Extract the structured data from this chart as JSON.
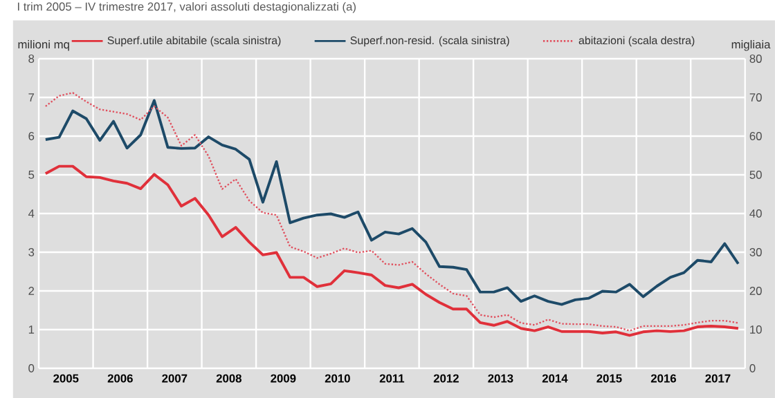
{
  "chart_data": {
    "type": "line",
    "subtitle": "I trim 2005 – IV trimestre 2017, valori assoluti destagionalizzati (a)",
    "ylabel": "milioni mq",
    "y2label": "migliaia",
    "x": [
      2005.125,
      2005.375,
      2005.625,
      2005.875,
      2006.125,
      2006.375,
      2006.625,
      2006.875,
      2007.125,
      2007.375,
      2007.625,
      2007.875,
      2008.125,
      2008.375,
      2008.625,
      2008.875,
      2009.125,
      2009.375,
      2009.625,
      2009.875,
      2010.125,
      2010.375,
      2010.625,
      2010.875,
      2011.125,
      2011.375,
      2011.625,
      2011.875,
      2012.125,
      2012.375,
      2012.625,
      2012.875,
      2013.125,
      2013.375,
      2013.625,
      2013.875,
      2014.125,
      2014.375,
      2014.625,
      2014.875,
      2015.125,
      2015.375,
      2015.625,
      2015.875,
      2016.125,
      2016.375,
      2016.625,
      2016.875,
      2017.125,
      2017.375,
      2017.625,
      2017.875
    ],
    "xlim": [
      2005,
      2018
    ],
    "xticks": [
      {
        "value": 2005,
        "label": null
      },
      {
        "value": 2005.5,
        "label": "2005"
      },
      {
        "value": 2006,
        "label": null
      },
      {
        "value": 2006.5,
        "label": "2006"
      },
      {
        "value": 2007,
        "label": null
      },
      {
        "value": 2007.5,
        "label": "2007"
      },
      {
        "value": 2008,
        "label": null
      },
      {
        "value": 2008.5,
        "label": "2008"
      },
      {
        "value": 2009,
        "label": null
      },
      {
        "value": 2009.5,
        "label": "2009"
      },
      {
        "value": 2010,
        "label": null
      },
      {
        "value": 2010.5,
        "label": "2010"
      },
      {
        "value": 2011,
        "label": null
      },
      {
        "value": 2011.5,
        "label": "2011"
      },
      {
        "value": 2012,
        "label": null
      },
      {
        "value": 2012.5,
        "label": "2012"
      },
      {
        "value": 2013,
        "label": null
      },
      {
        "value": 2013.5,
        "label": "2013"
      },
      {
        "value": 2014,
        "label": null
      },
      {
        "value": 2014.5,
        "label": "2014"
      },
      {
        "value": 2015,
        "label": null
      },
      {
        "value": 2015.5,
        "label": "2015"
      },
      {
        "value": 2016,
        "label": null
      },
      {
        "value": 2016.5,
        "label": "2016"
      },
      {
        "value": 2017,
        "label": null
      },
      {
        "value": 2017.5,
        "label": "2017"
      },
      {
        "value": 2018,
        "label": null
      }
    ],
    "ylim": [
      0,
      8
    ],
    "yticks": [
      0,
      1,
      2,
      3,
      4,
      5,
      6,
      7,
      8
    ],
    "y2lim": [
      0,
      80
    ],
    "y2ticks": [
      0,
      10,
      20,
      30,
      40,
      50,
      60,
      70,
      80
    ],
    "grid": true,
    "legend": "top",
    "marker": "none",
    "series": [
      {
        "name": "Superf.utile abitabile (scala sinistra)",
        "color": "#e0303a",
        "line_style": "solid",
        "values": [
          5.03,
          5.22,
          5.22,
          4.95,
          4.93,
          4.84,
          4.78,
          4.64,
          5.01,
          4.74,
          4.19,
          4.39,
          3.96,
          3.4,
          3.64,
          3.26,
          2.93,
          2.99,
          2.35,
          2.35,
          2.11,
          2.18,
          2.52,
          2.47,
          2.41,
          2.14,
          2.08,
          2.17,
          1.91,
          1.7,
          1.53,
          1.53,
          1.18,
          1.11,
          1.21,
          1.03,
          0.97,
          1.07,
          0.95,
          0.95,
          0.95,
          0.91,
          0.94,
          0.85,
          0.94,
          0.97,
          0.95,
          0.97,
          1.07,
          1.09,
          1.07,
          1.03
        ]
      },
      {
        "name": "Superf.non-resid. (scala sinistra)",
        "color": "#1d4a68",
        "line_style": "solid",
        "values": [
          5.91,
          5.97,
          6.65,
          6.45,
          5.89,
          6.38,
          5.69,
          6.03,
          6.92,
          5.71,
          5.68,
          5.69,
          5.98,
          5.77,
          5.66,
          5.4,
          4.29,
          5.34,
          3.76,
          3.88,
          3.96,
          3.99,
          3.9,
          4.04,
          3.31,
          3.52,
          3.47,
          3.61,
          3.26,
          2.63,
          2.61,
          2.55,
          1.97,
          1.97,
          2.08,
          1.73,
          1.87,
          1.73,
          1.65,
          1.77,
          1.81,
          1.99,
          1.97,
          2.17,
          1.85,
          2.12,
          2.35,
          2.47,
          2.79,
          2.75,
          3.22,
          2.7
        ]
      },
      {
        "name": "abitazioni (scala destra)",
        "color": "#e0505e",
        "line_style": "dotted",
        "axis": "y2",
        "values": [
          67.7,
          70.4,
          71.2,
          68.9,
          66.9,
          66.3,
          65.7,
          64.2,
          67.7,
          64.8,
          57.5,
          60.3,
          54.8,
          46.3,
          48.9,
          43.3,
          40.2,
          39.6,
          31.4,
          30.2,
          28.5,
          29.6,
          31.0,
          29.9,
          30.4,
          27.0,
          26.7,
          27.5,
          24.4,
          21.7,
          19.3,
          18.7,
          13.8,
          13.2,
          13.8,
          11.7,
          11.2,
          12.6,
          11.5,
          11.4,
          11.4,
          10.9,
          10.7,
          9.7,
          10.9,
          10.9,
          10.9,
          11.2,
          11.8,
          12.3,
          12.3,
          11.7
        ]
      }
    ]
  }
}
